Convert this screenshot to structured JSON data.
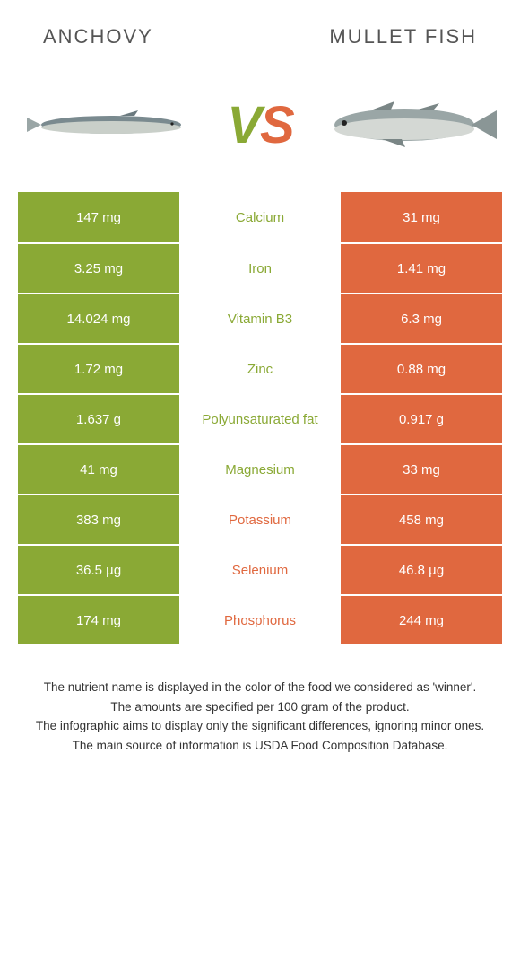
{
  "header": {
    "left": "Anchovy",
    "right": "Mullet fish"
  },
  "colors": {
    "left": "#8aa935",
    "right": "#e0683f",
    "text": "#555555"
  },
  "rows": [
    {
      "left": "147 mg",
      "label": "Calcium",
      "right": "31 mg",
      "winner": "left"
    },
    {
      "left": "3.25 mg",
      "label": "Iron",
      "right": "1.41 mg",
      "winner": "left"
    },
    {
      "left": "14.024 mg",
      "label": "Vitamin B3",
      "right": "6.3 mg",
      "winner": "left"
    },
    {
      "left": "1.72 mg",
      "label": "Zinc",
      "right": "0.88 mg",
      "winner": "left"
    },
    {
      "left": "1.637 g",
      "label": "Polyunsaturated fat",
      "right": "0.917 g",
      "winner": "left"
    },
    {
      "left": "41 mg",
      "label": "Magnesium",
      "right": "33 mg",
      "winner": "left"
    },
    {
      "left": "383 mg",
      "label": "Potassium",
      "right": "458 mg",
      "winner": "right"
    },
    {
      "left": "36.5 µg",
      "label": "Selenium",
      "right": "46.8 µg",
      "winner": "right"
    },
    {
      "left": "174 mg",
      "label": "Phosphorus",
      "right": "244 mg",
      "winner": "right"
    }
  ],
  "footer": {
    "l1": "The nutrient name is displayed in the color of the food we considered as 'winner'.",
    "l2": "The amounts are specified per 100 gram of the product.",
    "l3": "The infographic aims to display only the significant differences, ignoring minor ones.",
    "l4": "The main source of information is USDA Food Composition Database."
  }
}
